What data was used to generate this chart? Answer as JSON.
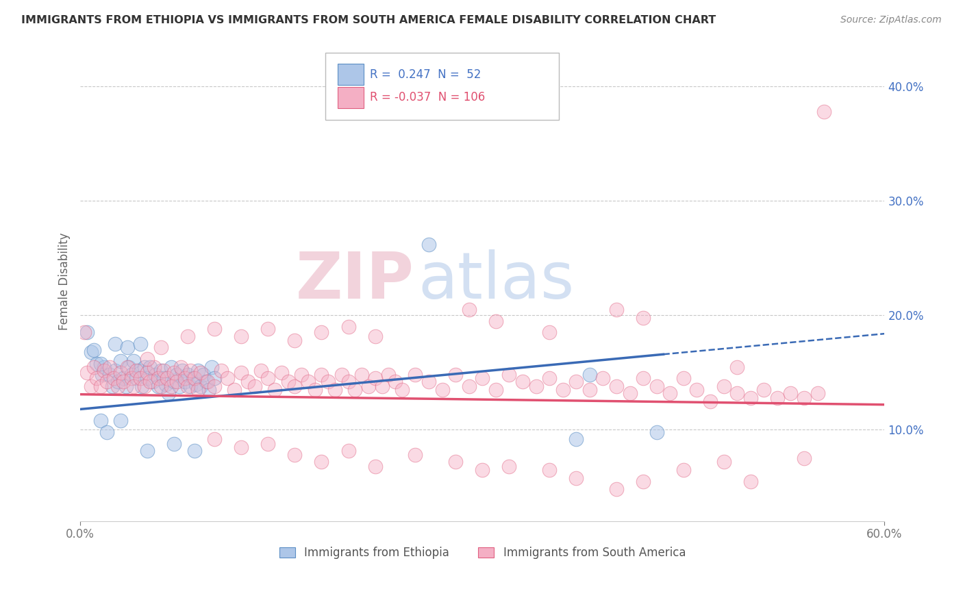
{
  "title": "IMMIGRANTS FROM ETHIOPIA VS IMMIGRANTS FROM SOUTH AMERICA FEMALE DISABILITY CORRELATION CHART",
  "source": "Source: ZipAtlas.com",
  "ylabel": "Female Disability",
  "x_min": 0.0,
  "x_max": 0.6,
  "y_min": 0.02,
  "y_max": 0.44,
  "x_ticks": [
    0.0,
    0.6
  ],
  "x_tick_labels": [
    "0.0%",
    "60.0%"
  ],
  "y_ticks": [
    0.1,
    0.2,
    0.3,
    0.4
  ],
  "y_tick_labels": [
    "10.0%",
    "20.0%",
    "30.0%",
    "40.0%"
  ],
  "scatter_blue": {
    "color": "#adc6e8",
    "edge_color": "#5b8ec4",
    "alpha": 0.55,
    "size": 220
  },
  "scatter_pink": {
    "color": "#f4afc4",
    "edge_color": "#e06080",
    "alpha": 0.45,
    "size": 220
  },
  "trendline_blue": {
    "color": "#3a6ab5",
    "x_start": 0.0,
    "y_start": 0.118,
    "x_end": 0.435,
    "y_end": 0.166
  },
  "trendline_blue_dashed": {
    "color": "#3a6ab5",
    "x_start": 0.435,
    "y_start": 0.166,
    "x_end": 0.6,
    "y_end": 0.184
  },
  "trendline_pink": {
    "color": "#e05070",
    "x_start": 0.0,
    "y_start": 0.131,
    "x_end": 0.6,
    "y_end": 0.122
  },
  "watermark_zip": "ZIP",
  "watermark_atlas": "atlas",
  "background_color": "#ffffff",
  "grid_color": "#c8c8c8",
  "blue_points": [
    [
      0.008,
      0.168
    ],
    [
      0.012,
      0.158
    ],
    [
      0.016,
      0.148
    ],
    [
      0.018,
      0.155
    ],
    [
      0.022,
      0.148
    ],
    [
      0.024,
      0.138
    ],
    [
      0.026,
      0.152
    ],
    [
      0.028,
      0.142
    ],
    [
      0.03,
      0.16
    ],
    [
      0.032,
      0.145
    ],
    [
      0.034,
      0.138
    ],
    [
      0.036,
      0.155
    ],
    [
      0.038,
      0.148
    ],
    [
      0.04,
      0.16
    ],
    [
      0.042,
      0.145
    ],
    [
      0.044,
      0.152
    ],
    [
      0.046,
      0.138
    ],
    [
      0.048,
      0.155
    ],
    [
      0.05,
      0.145
    ],
    [
      0.052,
      0.155
    ],
    [
      0.054,
      0.142
    ],
    [
      0.056,
      0.148
    ],
    [
      0.058,
      0.138
    ],
    [
      0.06,
      0.152
    ],
    [
      0.062,
      0.145
    ],
    [
      0.064,
      0.14
    ],
    [
      0.066,
      0.132
    ],
    [
      0.068,
      0.155
    ],
    [
      0.07,
      0.142
    ],
    [
      0.072,
      0.148
    ],
    [
      0.074,
      0.138
    ],
    [
      0.076,
      0.152
    ],
    [
      0.078,
      0.142
    ],
    [
      0.08,
      0.148
    ],
    [
      0.082,
      0.138
    ],
    [
      0.084,
      0.145
    ],
    [
      0.086,
      0.14
    ],
    [
      0.088,
      0.152
    ],
    [
      0.09,
      0.138
    ],
    [
      0.092,
      0.148
    ],
    [
      0.094,
      0.142
    ],
    [
      0.096,
      0.135
    ],
    [
      0.098,
      0.155
    ],
    [
      0.1,
      0.145
    ],
    [
      0.026,
      0.175
    ],
    [
      0.035,
      0.172
    ],
    [
      0.045,
      0.175
    ],
    [
      0.015,
      0.108
    ],
    [
      0.02,
      0.098
    ],
    [
      0.03,
      0.108
    ],
    [
      0.05,
      0.082
    ],
    [
      0.07,
      0.088
    ],
    [
      0.085,
      0.082
    ],
    [
      0.26,
      0.262
    ],
    [
      0.37,
      0.092
    ],
    [
      0.005,
      0.185
    ],
    [
      0.01,
      0.17
    ],
    [
      0.015,
      0.158
    ],
    [
      0.38,
      0.148
    ],
    [
      0.43,
      0.098
    ]
  ],
  "pink_points": [
    [
      0.005,
      0.15
    ],
    [
      0.008,
      0.138
    ],
    [
      0.01,
      0.155
    ],
    [
      0.012,
      0.145
    ],
    [
      0.015,
      0.138
    ],
    [
      0.018,
      0.152
    ],
    [
      0.02,
      0.142
    ],
    [
      0.022,
      0.155
    ],
    [
      0.025,
      0.145
    ],
    [
      0.028,
      0.138
    ],
    [
      0.03,
      0.15
    ],
    [
      0.032,
      0.142
    ],
    [
      0.035,
      0.155
    ],
    [
      0.038,
      0.145
    ],
    [
      0.04,
      0.138
    ],
    [
      0.042,
      0.152
    ],
    [
      0.045,
      0.145
    ],
    [
      0.048,
      0.138
    ],
    [
      0.05,
      0.15
    ],
    [
      0.052,
      0.142
    ],
    [
      0.055,
      0.155
    ],
    [
      0.058,
      0.145
    ],
    [
      0.06,
      0.138
    ],
    [
      0.062,
      0.152
    ],
    [
      0.065,
      0.145
    ],
    [
      0.068,
      0.138
    ],
    [
      0.07,
      0.15
    ],
    [
      0.072,
      0.142
    ],
    [
      0.075,
      0.155
    ],
    [
      0.078,
      0.145
    ],
    [
      0.08,
      0.138
    ],
    [
      0.082,
      0.152
    ],
    [
      0.085,
      0.145
    ],
    [
      0.088,
      0.135
    ],
    [
      0.09,
      0.15
    ],
    [
      0.095,
      0.142
    ],
    [
      0.1,
      0.138
    ],
    [
      0.105,
      0.152
    ],
    [
      0.11,
      0.145
    ],
    [
      0.115,
      0.135
    ],
    [
      0.12,
      0.15
    ],
    [
      0.125,
      0.142
    ],
    [
      0.13,
      0.138
    ],
    [
      0.135,
      0.152
    ],
    [
      0.14,
      0.145
    ],
    [
      0.145,
      0.135
    ],
    [
      0.15,
      0.15
    ],
    [
      0.155,
      0.142
    ],
    [
      0.16,
      0.138
    ],
    [
      0.165,
      0.148
    ],
    [
      0.17,
      0.142
    ],
    [
      0.175,
      0.135
    ],
    [
      0.18,
      0.148
    ],
    [
      0.185,
      0.142
    ],
    [
      0.19,
      0.135
    ],
    [
      0.195,
      0.148
    ],
    [
      0.2,
      0.142
    ],
    [
      0.205,
      0.135
    ],
    [
      0.21,
      0.148
    ],
    [
      0.215,
      0.138
    ],
    [
      0.22,
      0.145
    ],
    [
      0.225,
      0.138
    ],
    [
      0.23,
      0.148
    ],
    [
      0.235,
      0.142
    ],
    [
      0.24,
      0.135
    ],
    [
      0.25,
      0.148
    ],
    [
      0.26,
      0.142
    ],
    [
      0.27,
      0.135
    ],
    [
      0.28,
      0.148
    ],
    [
      0.29,
      0.138
    ],
    [
      0.3,
      0.145
    ],
    [
      0.31,
      0.135
    ],
    [
      0.32,
      0.148
    ],
    [
      0.33,
      0.142
    ],
    [
      0.34,
      0.138
    ],
    [
      0.35,
      0.145
    ],
    [
      0.36,
      0.135
    ],
    [
      0.37,
      0.142
    ],
    [
      0.38,
      0.135
    ],
    [
      0.39,
      0.145
    ],
    [
      0.4,
      0.138
    ],
    [
      0.41,
      0.132
    ],
    [
      0.42,
      0.145
    ],
    [
      0.43,
      0.138
    ],
    [
      0.44,
      0.132
    ],
    [
      0.45,
      0.145
    ],
    [
      0.46,
      0.135
    ],
    [
      0.47,
      0.125
    ],
    [
      0.48,
      0.138
    ],
    [
      0.49,
      0.132
    ],
    [
      0.5,
      0.128
    ],
    [
      0.51,
      0.135
    ],
    [
      0.52,
      0.128
    ],
    [
      0.53,
      0.132
    ],
    [
      0.54,
      0.128
    ],
    [
      0.55,
      0.132
    ],
    [
      0.08,
      0.182
    ],
    [
      0.1,
      0.188
    ],
    [
      0.12,
      0.182
    ],
    [
      0.14,
      0.188
    ],
    [
      0.16,
      0.178
    ],
    [
      0.18,
      0.185
    ],
    [
      0.2,
      0.19
    ],
    [
      0.22,
      0.182
    ],
    [
      0.1,
      0.092
    ],
    [
      0.12,
      0.085
    ],
    [
      0.14,
      0.088
    ],
    [
      0.16,
      0.078
    ],
    [
      0.18,
      0.072
    ],
    [
      0.2,
      0.082
    ],
    [
      0.22,
      0.068
    ],
    [
      0.25,
      0.078
    ],
    [
      0.28,
      0.072
    ],
    [
      0.3,
      0.065
    ],
    [
      0.32,
      0.068
    ],
    [
      0.35,
      0.065
    ],
    [
      0.37,
      0.058
    ],
    [
      0.4,
      0.048
    ],
    [
      0.42,
      0.055
    ],
    [
      0.45,
      0.065
    ],
    [
      0.48,
      0.072
    ],
    [
      0.5,
      0.055
    ],
    [
      0.54,
      0.075
    ],
    [
      0.555,
      0.378
    ],
    [
      0.29,
      0.205
    ],
    [
      0.31,
      0.195
    ],
    [
      0.35,
      0.185
    ],
    [
      0.49,
      0.155
    ],
    [
      0.05,
      0.162
    ],
    [
      0.06,
      0.172
    ],
    [
      0.4,
      0.205
    ],
    [
      0.42,
      0.198
    ],
    [
      0.003,
      0.185
    ]
  ],
  "bottom_legend": [
    {
      "label": "Immigrants from Ethiopia",
      "color": "#adc6e8",
      "edge": "#5b8ec4"
    },
    {
      "label": "Immigrants from South America",
      "color": "#f4afc4",
      "edge": "#e06080"
    }
  ]
}
